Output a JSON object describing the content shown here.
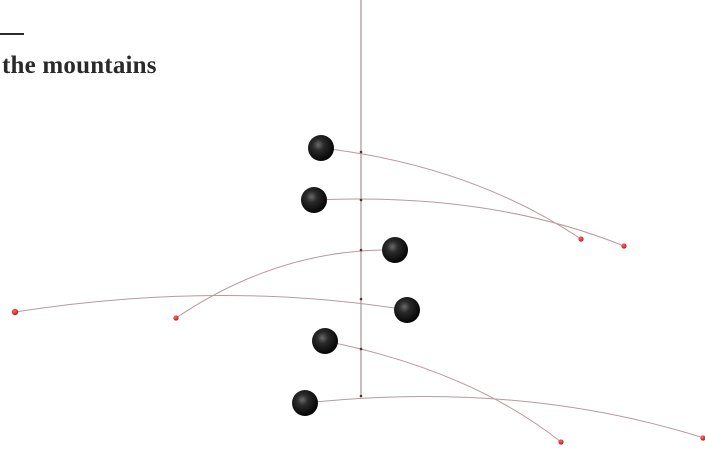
{
  "heading": {
    "title": "the mountains"
  },
  "colors": {
    "sphere": "#111111",
    "counterweight": "#d42a2a",
    "wire": "#8d7f80",
    "rod": "#b89a9c",
    "title": "#2a2a2a"
  }
}
